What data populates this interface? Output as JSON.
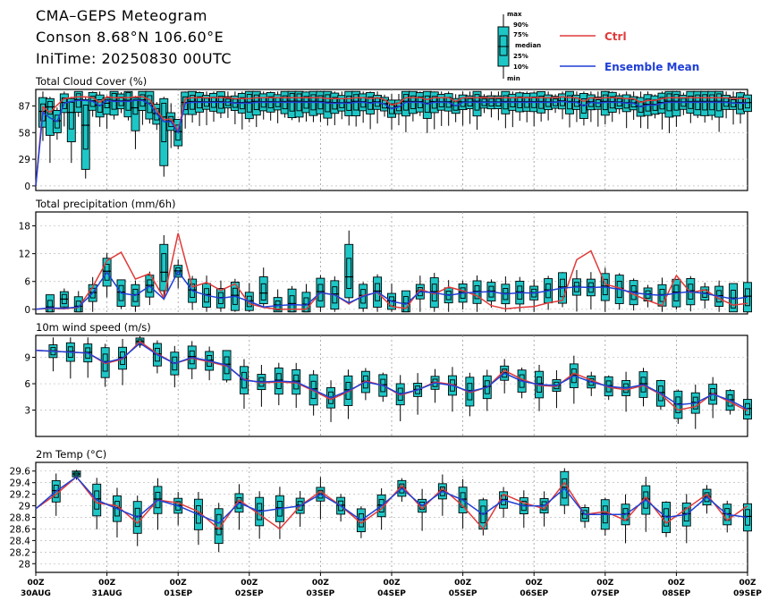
{
  "header": {
    "title": "CMA–GEPS Meteogram",
    "location": "Conson 8.68°N 106.60°E",
    "init": "IniTime: 20250830 00UTC"
  },
  "legend": {
    "box_labels": [
      "max",
      "90%",
      "75%",
      "median",
      "25%",
      "10%",
      "min"
    ],
    "ctrl_label": "Ctrl",
    "mean_label": "Ensemble Mean",
    "ctrl_color": "#e03a3a",
    "mean_color": "#1f3fd6",
    "box_color": "#1fc6c6"
  },
  "x_ticks": [
    [
      "00Z",
      "30AUG"
    ],
    [
      "00Z",
      "31AUG"
    ],
    [
      "00Z",
      "01SEP"
    ],
    [
      "00Z",
      "02SEP"
    ],
    [
      "00Z",
      "03SEP"
    ],
    [
      "00Z",
      "04SEP"
    ],
    [
      "00Z",
      "05SEP"
    ],
    [
      "00Z",
      "06SEP"
    ],
    [
      "00Z",
      "07SEP"
    ],
    [
      "00Z",
      "08SEP"
    ],
    [
      "00Z",
      "09SEP"
    ]
  ],
  "chart_data": [
    {
      "type": "box",
      "title": "Total Cloud Cover (%)",
      "ylim": [
        -5,
        105
      ],
      "yticks": [
        0,
        29,
        58,
        87
      ],
      "x_step_hours": 6,
      "ctrl": [
        0,
        86,
        80,
        88,
        95,
        96,
        97,
        97,
        96,
        91,
        97,
        96,
        96,
        96,
        97,
        97,
        94,
        82,
        72,
        73,
        60,
        95,
        96,
        96,
        96,
        96,
        96,
        96,
        95,
        95,
        95,
        96,
        96,
        96,
        96,
        96,
        96,
        96,
        96,
        96,
        96,
        95,
        95,
        95,
        95,
        96,
        96,
        95,
        96,
        94,
        88,
        90,
        96,
        96,
        96,
        94,
        96,
        96,
        96,
        92,
        96,
        96,
        96,
        96,
        96,
        96,
        96,
        96,
        96,
        96,
        96,
        96,
        96,
        96,
        97,
        96,
        96,
        92,
        96,
        95,
        96,
        96,
        96,
        95,
        95,
        91,
        93,
        93,
        95,
        96,
        96,
        96,
        96,
        96,
        96,
        96,
        96,
        96,
        95,
        95,
        95
      ],
      "mean": [
        0,
        80,
        74,
        70,
        90,
        92,
        93,
        93,
        92,
        87,
        93,
        92,
        92,
        92,
        93,
        93,
        89,
        78,
        70,
        70,
        58,
        90,
        91,
        91,
        91,
        91,
        91,
        91,
        90,
        90,
        90,
        91,
        91,
        91,
        91,
        91,
        91,
        91,
        91,
        91,
        91,
        90,
        90,
        90,
        90,
        91,
        91,
        90,
        91,
        89,
        84,
        86,
        91,
        91,
        91,
        89,
        91,
        91,
        91,
        87,
        91,
        91,
        91,
        91,
        91,
        91,
        91,
        91,
        91,
        91,
        91,
        91,
        91,
        91,
        92,
        91,
        91,
        87,
        91,
        90,
        91,
        91,
        91,
        90,
        90,
        86,
        88,
        88,
        90,
        91,
        91,
        91,
        91,
        91,
        91,
        91,
        91,
        91,
        90,
        90,
        90
      ],
      "boxes": [
        {
          "i": 2,
          "min": 25,
          "p10": 55,
          "p25": 78,
          "med": 86,
          "p75": 92,
          "p90": 95,
          "max": 97
        },
        {
          "i": 5,
          "min": 25,
          "p10": 48,
          "p25": 62,
          "med": 80,
          "p75": 91,
          "p90": 95,
          "max": 97
        },
        {
          "i": 7,
          "min": 8,
          "p10": 18,
          "p25": 40,
          "med": 66,
          "p75": 88,
          "p90": 94,
          "max": 97
        },
        {
          "i": 10,
          "min": 62,
          "p10": 78,
          "p25": 85,
          "med": 90,
          "p75": 94,
          "p90": 96,
          "max": 98
        },
        {
          "i": 14,
          "min": 40,
          "p10": 60,
          "p25": 78,
          "med": 85,
          "p75": 94,
          "p90": 96,
          "max": 98
        },
        {
          "i": 18,
          "min": 10,
          "p10": 22,
          "p25": 48,
          "med": 75,
          "p75": 90,
          "p90": 95,
          "max": 97
        }
      ]
    },
    {
      "type": "box",
      "title": "Total precipitation (mm/6h)",
      "ylim": [
        -1,
        21
      ],
      "yticks": [
        0,
        6,
        12,
        18
      ],
      "ctrl": [
        0,
        0.2,
        0.1,
        0.4,
        4.8,
        10.5,
        12.3,
        6.5,
        7.7,
        2.4,
        16.4,
        4.8,
        5.8,
        4.1,
        5.5,
        1.2,
        0.4,
        0,
        0,
        0,
        3.6,
        3.1,
        1.2,
        3.0,
        3.6,
        0.6,
        0.2,
        4.3,
        3.3,
        4.8,
        4.0,
        2.9,
        0.8,
        0.1,
        0.4,
        0.6,
        1.4,
        1.9,
        10.7,
        12.6,
        5.4,
        4.6,
        3.2,
        1.9,
        0.8,
        7.3,
        3.6,
        4.2,
        2.3,
        0.9,
        1.3
      ],
      "mean": [
        0,
        0.3,
        0.2,
        0.5,
        3.5,
        8.0,
        3.5,
        3.0,
        5.0,
        2.2,
        8.2,
        4.0,
        3.0,
        2.4,
        2.8,
        1.7,
        0.5,
        0.8,
        1.0,
        0.9,
        3.6,
        3.1,
        1.4,
        2.8,
        3.7,
        1.7,
        1.1,
        3.8,
        3.6,
        3.0,
        3.5,
        3.7,
        3.8,
        3.3,
        3.6,
        3.5,
        4.0,
        4.6,
        4.8,
        4.7,
        4.8,
        4.3,
        3.6,
        3.2,
        3.0,
        3.5,
        3.8,
        3.4,
        2.8,
        2.2,
        2.6
      ],
      "boxes": [
        {
          "i": 2,
          "min": 0,
          "p10": 0.5,
          "p25": 1.2,
          "med": 2.2,
          "p75": 3.2,
          "p90": 3.8,
          "max": 4.5
        },
        {
          "i": 9,
          "min": 2,
          "p10": 4,
          "p25": 6,
          "med": 8,
          "p75": 12,
          "p90": 14,
          "max": 16
        },
        {
          "i": 16,
          "min": 0.5,
          "p10": 1.2,
          "p25": 2,
          "med": 3.5,
          "p75": 5.5,
          "p90": 7,
          "max": 9
        },
        {
          "i": 22,
          "min": 1,
          "p10": 2.5,
          "p25": 4.5,
          "med": 7,
          "p75": 11,
          "p90": 14,
          "max": 17
        }
      ]
    },
    {
      "type": "box",
      "title": "10m wind speed (m/s)",
      "ylim": [
        0,
        11.5
      ],
      "yticks": [
        3,
        6,
        9
      ],
      "ctrl": [
        9.8,
        9.7,
        9.6,
        9.5,
        8.3,
        8.8,
        10.8,
        9.4,
        8.3,
        8.9,
        8.5,
        8.0,
        6.5,
        6.1,
        6.2,
        6.1,
        5.2,
        4.2,
        5.1,
        6.3,
        5.8,
        4.7,
        5.3,
        6.2,
        5.9,
        5.0,
        5.6,
        7.5,
        6.5,
        5.8,
        5.7,
        7.2,
        6.4,
        5.6,
        5.3,
        5.8,
        4.8,
        3.0,
        3.4,
        4.9,
        3.9,
        2.9
      ],
      "mean": [
        9.8,
        9.7,
        9.6,
        9.5,
        8.4,
        8.9,
        10.6,
        9.3,
        8.3,
        9.0,
        8.6,
        8.1,
        6.4,
        6.2,
        6.3,
        6.2,
        5.3,
        4.4,
        5.2,
        6.2,
        5.8,
        4.8,
        5.3,
        6.1,
        5.8,
        5.1,
        5.6,
        7.2,
        6.3,
        5.9,
        5.8,
        6.9,
        6.2,
        5.7,
        5.5,
        5.9,
        4.9,
        3.6,
        3.8,
        4.8,
        4.1,
        3.1
      ],
      "boxes": [
        {
          "i": 6,
          "min": 10.1,
          "p10": 10.4,
          "p25": 10.6,
          "med": 10.8,
          "p75": 11.0,
          "p90": 11.2,
          "max": 11.4
        }
      ]
    },
    {
      "type": "box",
      "title": "2m Temp (°C)",
      "ylim": [
        27.85,
        29.75
      ],
      "yticks": [
        28,
        28.2,
        28.4,
        28.6,
        28.8,
        29,
        29.2,
        29.4,
        29.6
      ],
      "ytick_labels": [
        "28",
        "28.2",
        "28.4",
        "28.6",
        "28.8",
        "29",
        "29.2",
        "29.4",
        "29.6"
      ],
      "ctrl": [
        28.95,
        29.2,
        29.5,
        29.05,
        29.0,
        28.7,
        29.1,
        29.05,
        28.9,
        28.6,
        29.1,
        28.85,
        28.6,
        29.0,
        29.25,
        29.0,
        28.7,
        28.95,
        29.35,
        28.95,
        29.3,
        29.0,
        28.6,
        29.2,
        29.05,
        28.95,
        29.4,
        28.85,
        28.9,
        28.75,
        29.15,
        28.7,
        28.95,
        29.2,
        28.75,
        29.0
      ],
      "mean": [
        28.95,
        29.25,
        29.5,
        29.1,
        28.95,
        28.8,
        29.1,
        29.0,
        28.85,
        28.7,
        29.05,
        28.9,
        28.95,
        29.0,
        29.2,
        29.0,
        28.75,
        29.0,
        29.3,
        29.0,
        29.25,
        29.1,
        28.85,
        29.1,
        29.0,
        29.0,
        29.3,
        28.85,
        28.85,
        28.85,
        29.1,
        28.8,
        28.85,
        29.15,
        28.85,
        28.8
      ],
      "boxes": [
        {
          "i": 2,
          "min": 29.45,
          "p10": 29.5,
          "p25": 29.52,
          "med": 29.55,
          "p75": 29.58,
          "p90": 29.6,
          "max": 29.62
        },
        {
          "i": 9,
          "min": 28.2,
          "p10": 28.35,
          "p25": 28.5,
          "med": 28.6,
          "p75": 28.85,
          "p90": 28.95,
          "max": 29.05
        }
      ]
    }
  ]
}
